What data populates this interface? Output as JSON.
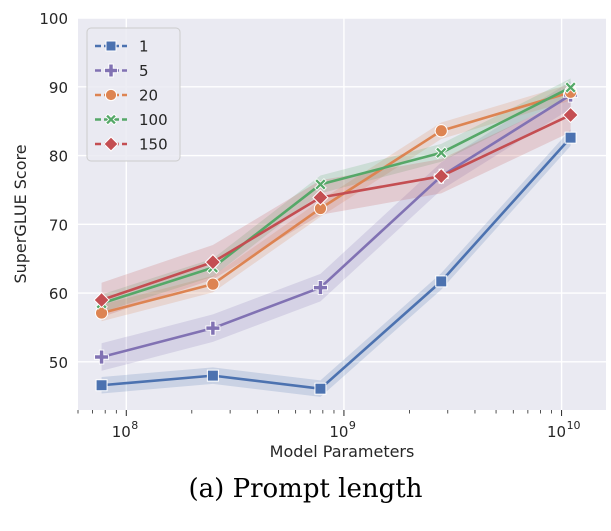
{
  "chart_data": {
    "type": "line",
    "xlabel": "Model Parameters",
    "ylabel": "SuperGLUE Score",
    "x_scale": "log",
    "xlim": [
      60000000,
      16000000000
    ],
    "ylim": [
      43,
      100
    ],
    "y_ticks": [
      50,
      60,
      70,
      80,
      90,
      100
    ],
    "x_ticks": [
      {
        "value": 100000000,
        "base": "10",
        "exp": "8"
      },
      {
        "value": 1000000000,
        "base": "10",
        "exp": "9"
      },
      {
        "value": 10000000000,
        "base": "10",
        "exp": "10"
      }
    ],
    "grid": true,
    "legend_position": "top-left",
    "x": [
      77000000,
      250000000,
      780000000,
      2800000000,
      11000000000
    ],
    "series": [
      {
        "name": "1",
        "color": "#4c72b0",
        "marker": "square",
        "values": [
          46.6,
          48.0,
          46.1,
          61.7,
          82.6
        ],
        "band": 1.2
      },
      {
        "name": "5",
        "color": "#8172b3",
        "marker": "plus",
        "values": [
          50.7,
          54.9,
          60.8,
          77.0,
          88.8
        ],
        "band": 2.0
      },
      {
        "name": "20",
        "color": "#dd8452",
        "marker": "circle",
        "values": [
          57.1,
          61.3,
          72.3,
          83.6,
          89.2
        ],
        "band": 1.2
      },
      {
        "name": "100",
        "color": "#55a868",
        "marker": "x",
        "values": [
          58.5,
          63.7,
          75.8,
          80.4,
          89.9
        ],
        "band": 1.3
      },
      {
        "name": "150",
        "color": "#c44e52",
        "marker": "diamond",
        "values": [
          59.0,
          64.5,
          73.9,
          77.0,
          85.9
        ],
        "band": 2.5
      }
    ]
  },
  "caption": "(a) Prompt length"
}
